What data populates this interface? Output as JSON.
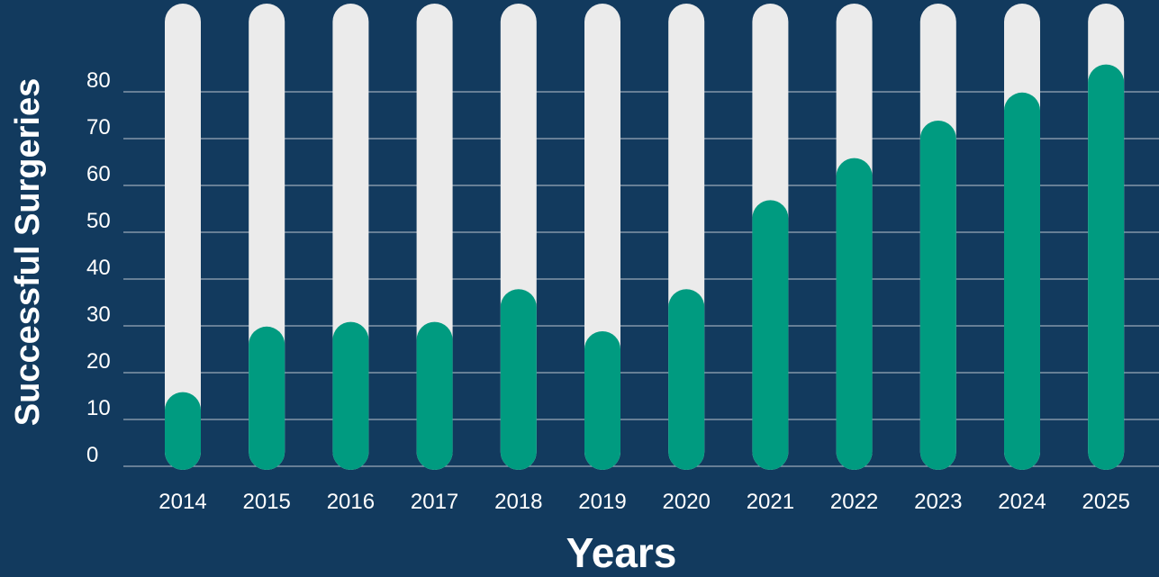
{
  "chart_data": {
    "type": "bar",
    "title": "",
    "xlabel": "Years",
    "ylabel": "Successful Surgeries",
    "categories": [
      "2014",
      "2015",
      "2016",
      "2017",
      "2018",
      "2019",
      "2020",
      "2021",
      "2022",
      "2023",
      "2024",
      "2025"
    ],
    "values": [
      12,
      26,
      27,
      27,
      34,
      25,
      34,
      53,
      62,
      70,
      76,
      82
    ],
    "ylim": [
      0,
      96
    ],
    "yticks": [
      0,
      10,
      20,
      30,
      40,
      50,
      60,
      70,
      80
    ],
    "grid": true,
    "legend": "none",
    "colors": {
      "background": "#123a5e",
      "bar_fill": "#009b80",
      "bar_track": "#ebebeb",
      "gridline": "#9aa9b8",
      "text": "#ffffff"
    }
  }
}
